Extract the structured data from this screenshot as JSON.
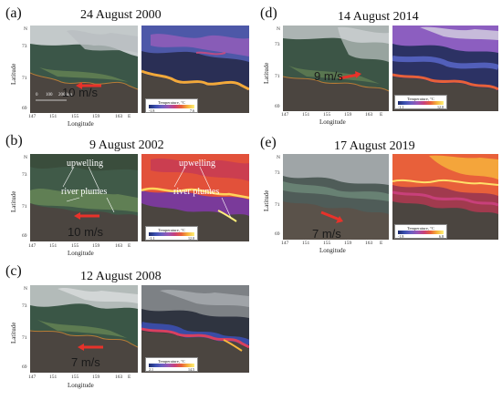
{
  "panels": {
    "a": {
      "label": "(a)",
      "title": "24 August 2000",
      "wind": "10 m/s",
      "cbar_min": "-1.8",
      "cbar_max": "7.6"
    },
    "b": {
      "label": "(b)",
      "title": "9 August 2002",
      "wind": "10 m/s",
      "cbar_min": "-1.1",
      "cbar_max": "12.0",
      "annot_upwelling": "upwelling",
      "annot_river": "river plumes"
    },
    "c": {
      "label": "(c)",
      "title": "12 August 2008",
      "wind": "7 m/s",
      "cbar_min": "2.1",
      "cbar_max": "14.5"
    },
    "d": {
      "label": "(d)",
      "title": "14 August 2014",
      "wind": "9 m/s",
      "cbar_min": "-1.1",
      "cbar_max": "12.0"
    },
    "e": {
      "label": "(e)",
      "title": "17 August 2019",
      "wind": "7 m/s",
      "cbar_min": "-1.8",
      "cbar_max": "6.8"
    }
  },
  "axes": {
    "xlabel": "Longitude",
    "ylabel": "Latitude",
    "x_ticks": [
      "147",
      "151",
      "155",
      "159",
      "163",
      "E"
    ],
    "y_ticks": [
      "N",
      "73",
      "71",
      "69"
    ]
  },
  "colorbar_title": "Temperature, °C",
  "scale_bar": [
    "0",
    "100",
    "200 km"
  ],
  "colors": {
    "wind_arrow": "#e8322a",
    "land": "#4b4540",
    "sea_rgb": "#3e5a4a",
    "cloud": "#cfd2d4"
  }
}
